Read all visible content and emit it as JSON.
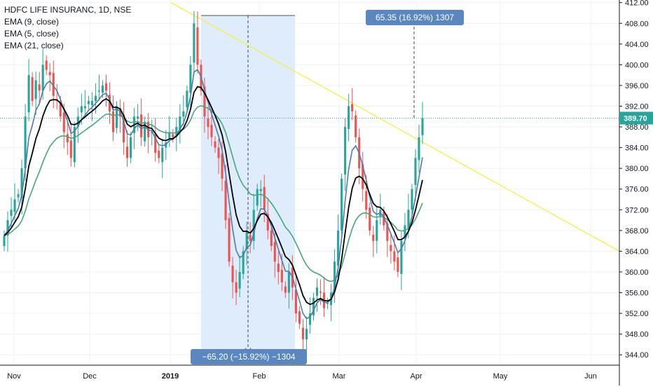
{
  "legend": {
    "symbol": "HDFC LIFE INSURANC, 1D, NSE",
    "ema9": "EMA (9, close)",
    "ema5": "EMA (5, close)",
    "ema21": "EMA (21, close)"
  },
  "colors": {
    "up": "#26a69a",
    "down": "#ef5350",
    "ema9": "#000000",
    "ema5": "#4e7ab0",
    "ema21": "#45a877",
    "trendline": "#f5f032",
    "range_fill": "#dbeafb",
    "range_label": "#5b87c0",
    "price_badge": "#26a69a"
  },
  "chart_data": {
    "type": "candlestick",
    "ylim": [
      342.0,
      412.5
    ],
    "yticks": [
      344,
      348,
      352,
      356,
      360,
      364,
      368,
      372,
      376,
      380,
      384,
      388,
      392,
      396,
      400,
      404,
      408,
      412
    ],
    "ytick_labels": [
      "344.00",
      "348.00",
      "352.00",
      "356.00",
      "360.00",
      "364.00",
      "368.00",
      "372.00",
      "376.00",
      "380.00",
      "384.00",
      "388.00",
      "392.00",
      "396.00",
      "400.00",
      "404.00",
      "408.00",
      "412.00"
    ],
    "xticks": [
      "Nov",
      "Dec",
      "2019",
      "Feb",
      "Mar",
      "Apr",
      "May",
      "Jun"
    ],
    "last_price": 389.7,
    "last_price_label": "389.70",
    "range_down_label": "−65.20 (−15.92%) −1304",
    "range_up_label": "65.35 (16.92%) 1307",
    "range_down": {
      "from": 409.5,
      "to": 344.5
    },
    "range_up_level": 389.7,
    "trendline": {
      "start": 412.0,
      "end": 364.0
    },
    "closes": [
      367,
      370,
      372,
      374,
      375,
      380,
      390,
      398,
      393,
      397,
      395,
      400,
      399,
      398,
      394,
      393,
      390,
      387,
      385,
      382,
      388,
      390,
      392,
      392,
      393,
      393,
      394,
      395,
      396,
      395,
      391,
      387,
      392,
      390,
      385,
      382,
      386,
      390,
      390,
      386,
      389,
      386,
      387,
      383,
      382,
      384,
      385,
      387,
      386,
      388,
      390,
      391,
      395,
      400,
      408,
      400,
      395,
      390,
      388,
      386,
      384,
      382,
      378,
      370,
      362,
      358,
      356,
      360,
      364,
      368,
      366,
      372,
      376,
      376,
      372,
      368,
      365,
      362,
      360,
      358,
      356,
      360,
      357,
      352,
      350,
      347,
      349,
      352,
      355,
      357,
      356,
      353,
      354,
      356,
      362,
      368,
      378,
      388,
      392,
      391,
      386,
      380,
      376,
      372,
      368,
      366,
      370,
      372,
      369,
      366,
      364,
      362,
      360,
      366,
      369,
      372,
      376,
      382,
      386,
      389.7
    ]
  }
}
